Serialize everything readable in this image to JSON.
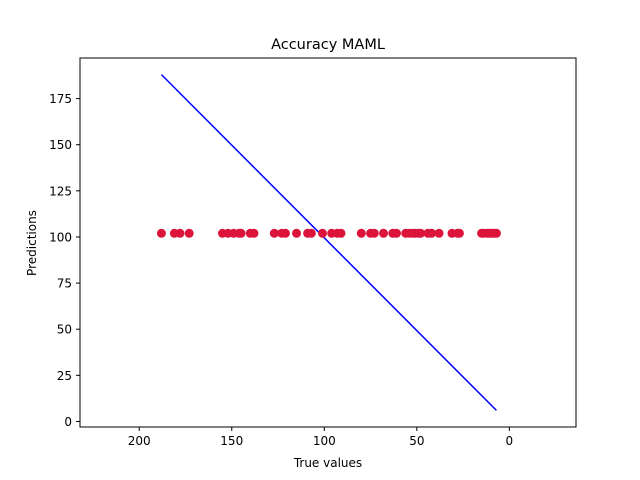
{
  "chart_data": {
    "type": "scatter",
    "title": "Accuracy MAML",
    "xlabel": "True values",
    "ylabel": "Predictions",
    "xlim": [
      232,
      -36
    ],
    "ylim": [
      -3,
      197
    ],
    "x_inverted": true,
    "grid": false,
    "legend": "none",
    "xticks": [
      200,
      150,
      100,
      50,
      0
    ],
    "yticks": [
      0,
      25,
      50,
      75,
      100,
      125,
      150,
      175
    ],
    "colors": {
      "points": "#dc143c",
      "line": "#0000ff",
      "axes": "#000000"
    },
    "series": [
      {
        "type": "scatter",
        "x": [
          188,
          181,
          178,
          173,
          155,
          152,
          149,
          146,
          145,
          140,
          138,
          127,
          123,
          121,
          115,
          109,
          107,
          101,
          96,
          93,
          91,
          80,
          75,
          73,
          68,
          63,
          61,
          56,
          54,
          52,
          51,
          49,
          48,
          44,
          42,
          38,
          31,
          28,
          27,
          15,
          14,
          12,
          11,
          10,
          9,
          8,
          7
        ],
        "y": [
          102,
          102,
          102,
          102,
          102,
          102,
          102,
          102,
          102,
          102,
          102,
          102,
          102,
          102,
          102,
          102,
          102,
          102,
          102,
          102,
          102,
          102,
          102,
          102,
          102,
          102,
          102,
          102,
          102,
          102,
          102,
          102,
          102,
          102,
          102,
          102,
          102,
          102,
          102,
          102,
          102,
          102,
          102,
          102,
          102,
          102,
          102
        ]
      },
      {
        "type": "line",
        "x": [
          188,
          7
        ],
        "y": [
          188,
          6
        ]
      }
    ]
  }
}
